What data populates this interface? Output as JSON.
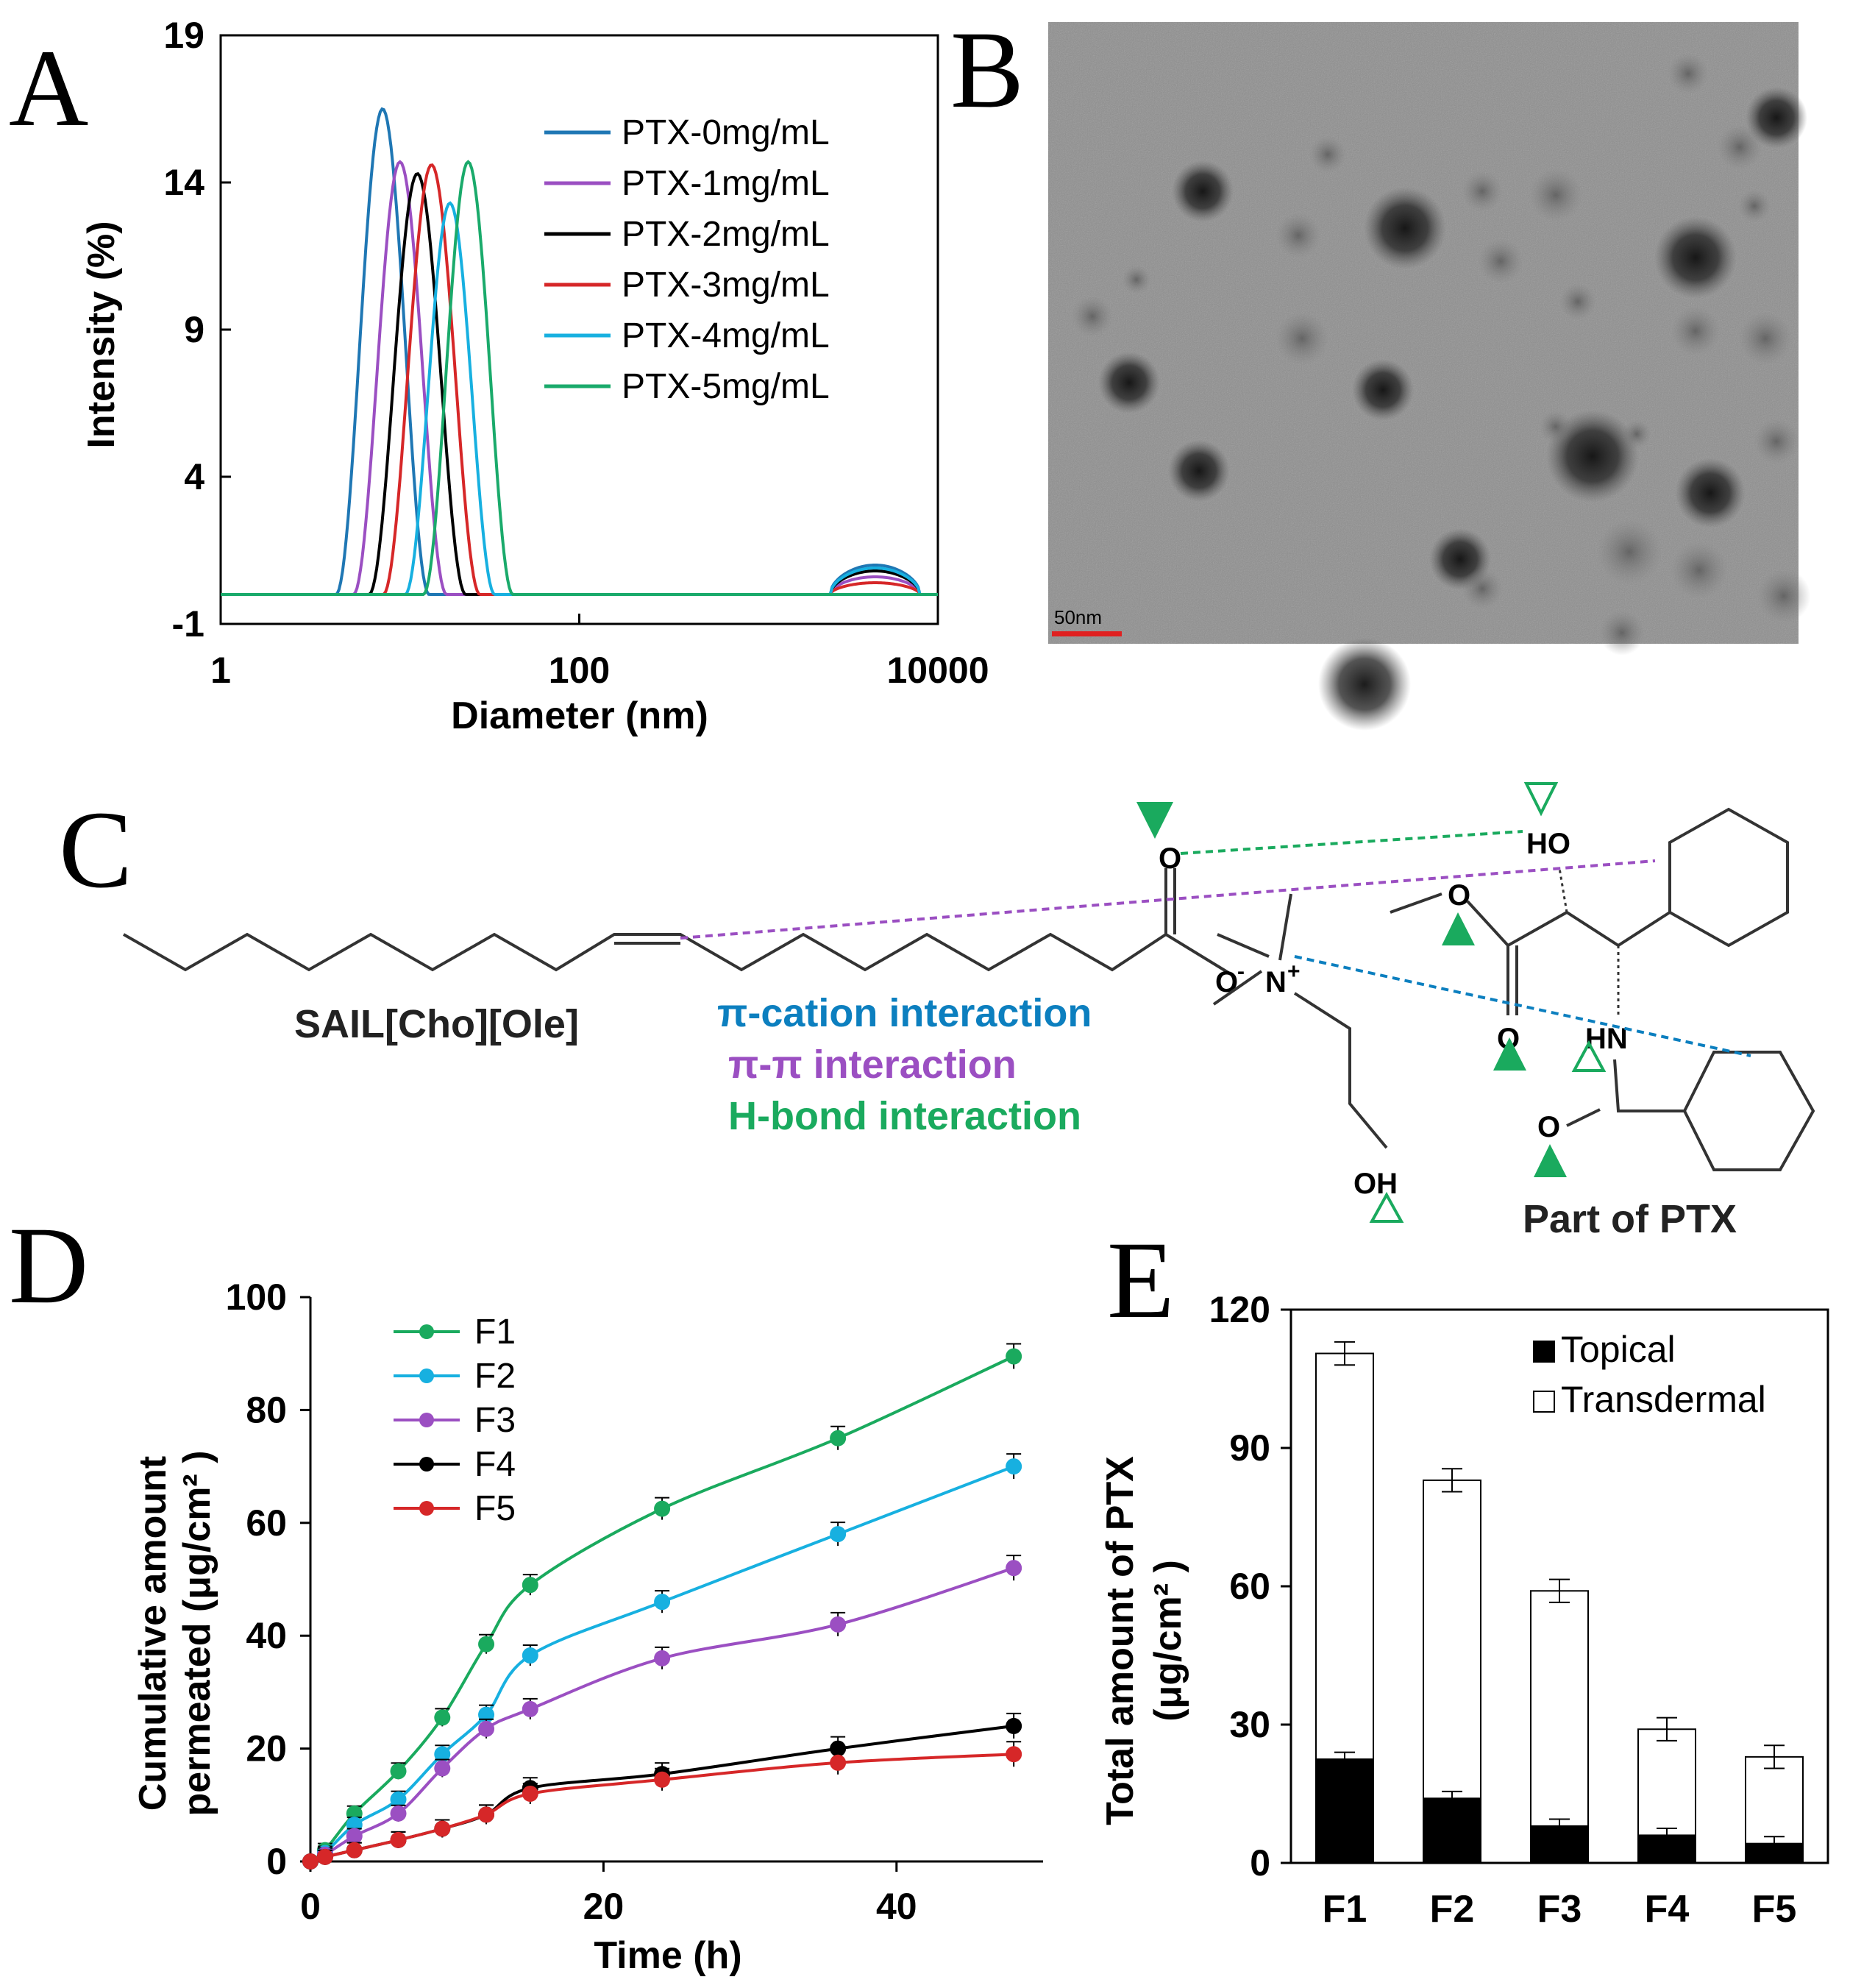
{
  "panels": {
    "A": "A",
    "B": "B",
    "C": "C",
    "D": "D",
    "E": "E"
  },
  "chart_data": [
    {
      "id": "A",
      "type": "line",
      "xlabel": "Diameter (nm)",
      "ylabel": "Intensity (%)",
      "x_scale": "log",
      "xlim": [
        1,
        10000
      ],
      "ylim": [
        -1,
        19
      ],
      "x_ticks": [
        "1",
        "100",
        "10000"
      ],
      "y_ticks": [
        "-1",
        "4",
        "9",
        "14",
        "19"
      ],
      "legend_position": "top-right",
      "series": [
        {
          "name": "PTX-0mg/mL",
          "color": "#1f77b4",
          "peak_diameter": 8.0,
          "peak_intensity": 16.5,
          "log_width": 0.26,
          "tail_intensity": 1.0
        },
        {
          "name": "PTX-1mg/mL",
          "color": "#9b4fc2",
          "peak_diameter": 10.0,
          "peak_intensity": 14.7,
          "log_width": 0.26,
          "tail_intensity": 0.6
        },
        {
          "name": "PTX-2mg/mL",
          "color": "#000000",
          "peak_diameter": 12.5,
          "peak_intensity": 14.3,
          "log_width": 0.27,
          "tail_intensity": 0.8
        },
        {
          "name": "PTX-3mg/mL",
          "color": "#d62728",
          "peak_diameter": 15.0,
          "peak_intensity": 14.6,
          "log_width": 0.27,
          "tail_intensity": 0.4
        },
        {
          "name": "PTX-4mg/mL",
          "color": "#17b0e0",
          "peak_diameter": 19.0,
          "peak_intensity": 13.3,
          "log_width": 0.25,
          "tail_intensity": 0.9
        },
        {
          "name": "PTX-5mg/mL",
          "color": "#1aaa6b",
          "peak_diameter": 24.0,
          "peak_intensity": 14.7,
          "log_width": 0.25,
          "tail_intensity": 0.0
        }
      ]
    },
    {
      "id": "D",
      "type": "line",
      "xlabel": "Time (h)",
      "ylabel_lines": [
        "Cumulative amount",
        "permeated (μg/cm² )"
      ],
      "xlim": [
        0,
        50
      ],
      "ylim": [
        0,
        100
      ],
      "x_ticks": [
        "0",
        "20",
        "40"
      ],
      "y_ticks": [
        "0",
        "20",
        "40",
        "60",
        "80",
        "100"
      ],
      "legend_position": "top-left",
      "x": [
        0,
        1,
        3,
        6,
        9,
        12,
        15,
        24,
        36,
        48
      ],
      "series": [
        {
          "name": "F1",
          "color": "#1aaa5e",
          "values": [
            0,
            2,
            8.5,
            16,
            25.5,
            38.5,
            49,
            62.5,
            75,
            89.5
          ]
        },
        {
          "name": "F2",
          "color": "#17b0e0",
          "values": [
            0,
            1.5,
            6.5,
            11,
            19,
            26,
            36.5,
            46,
            58,
            70
          ]
        },
        {
          "name": "F3",
          "color": "#9b4fc2",
          "values": [
            0,
            1.2,
            4.5,
            8.5,
            16.5,
            23.5,
            27,
            36,
            42,
            52
          ]
        },
        {
          "name": "F4",
          "color": "#000000",
          "values": [
            0,
            0.8,
            2,
            3.8,
            5.8,
            8.3,
            13,
            15.5,
            20,
            24
          ]
        },
        {
          "name": "F5",
          "color": "#d62728",
          "values": [
            0,
            0.8,
            2,
            3.8,
            5.8,
            8.3,
            12,
            14.5,
            17.5,
            19
          ]
        }
      ]
    },
    {
      "id": "E",
      "type": "bar",
      "stacked": true,
      "ylabel_lines": [
        "Total amount of PTX",
        "(μg/cm² )"
      ],
      "ylim": [
        0,
        120
      ],
      "y_ticks": [
        "0",
        "30",
        "60",
        "90",
        "120"
      ],
      "categories": [
        "F1",
        "F2",
        "F3",
        "F4",
        "F5"
      ],
      "legend_position": "top-right",
      "series": [
        {
          "name": "Topical",
          "fill": "#000000",
          "values": [
            22.5,
            14,
            8,
            6,
            4.2
          ]
        },
        {
          "name": "Transdermal",
          "fill": "#ffffff",
          "values": [
            88,
            69,
            51,
            23,
            18.8
          ]
        }
      ],
      "totals": [
        110.5,
        83,
        59,
        29,
        23
      ]
    }
  ],
  "tem": {
    "scale_label": "50nm"
  },
  "chem": {
    "compound": "SAIL[Cho][Ole]",
    "ptx_label": "Part of PTX",
    "interactions": [
      {
        "label": "π-cation interaction",
        "color": "#0c7fbf"
      },
      {
        "label": "π-π interaction",
        "color": "#9b4fc2"
      },
      {
        "label": "H-bond interaction",
        "color": "#1aaa5e"
      }
    ],
    "atoms": {
      "o_carbonyl": "O",
      "o_minus": "O",
      "minus": "-",
      "n": "N",
      "plus": "+",
      "oh": "OH",
      "ho": "HO",
      "o_ester": "O",
      "o_ketone": "O",
      "hn": "HN",
      "o_amide": "O"
    }
  }
}
